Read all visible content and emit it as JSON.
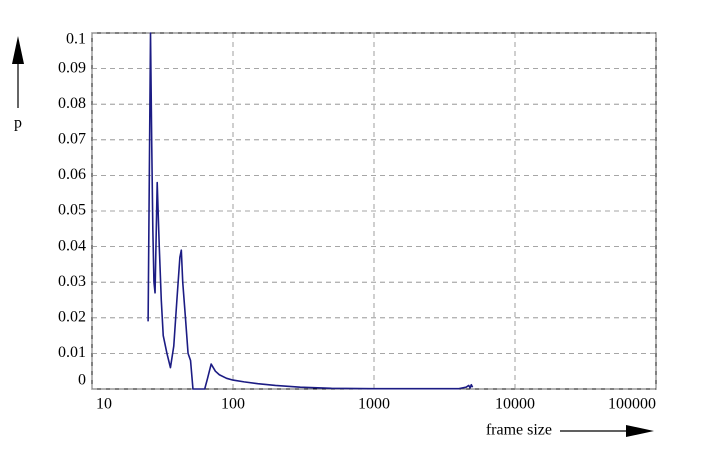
{
  "chart_data": {
    "type": "line",
    "x_label": "frame size",
    "y_label": "p",
    "x": [
      25,
      25.5,
      26,
      26.5,
      27,
      27.5,
      28,
      29,
      30,
      31,
      32,
      34,
      36,
      38,
      40,
      42,
      43,
      44,
      46,
      48,
      50,
      52,
      55,
      60,
      63,
      66,
      70,
      75,
      80,
      90,
      100,
      120,
      150,
      200,
      300,
      500,
      1000,
      2000,
      4000,
      4500,
      4700,
      4800,
      4900,
      5000
    ],
    "series": [
      {
        "color": "#1c1c84",
        "values": [
          0.019,
          0.06,
          0.1,
          0.07,
          0.045,
          0.03,
          0.027,
          0.058,
          0.04,
          0.025,
          0.015,
          0.01,
          0.006,
          0.012,
          0.025,
          0.037,
          0.039,
          0.03,
          0.02,
          0.01,
          0.008,
          0,
          0,
          0,
          0,
          0.003,
          0.007,
          0.005,
          0.004,
          0.003,
          0.0025,
          0.002,
          0.0015,
          0.001,
          0.0005,
          0.0002,
          0.0001,
          0.0001,
          0.0001,
          0.0005,
          0.001,
          0.0003,
          0.0012,
          0.0005
        ]
      }
    ],
    "x_scale": "log",
    "xlim": [
      10,
      100000
    ],
    "xticks": [
      10,
      100,
      1000,
      10000,
      100000
    ],
    "ylim": [
      0,
      0.1
    ],
    "yticks": [
      0,
      0.01,
      0.02,
      0.03,
      0.04,
      0.05,
      0.06,
      0.07,
      0.08,
      0.09,
      0.1
    ],
    "grid": true
  }
}
